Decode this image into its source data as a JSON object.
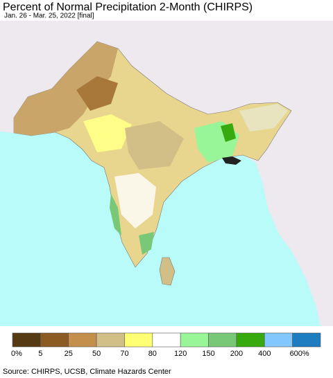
{
  "header": {
    "title": "Percent of Normal Precipitation 2-Month (CHIRPS)",
    "subtitle": "Jan. 26 - Mar. 25, 2022 [final]"
  },
  "legend": {
    "colors": [
      "#553a14",
      "#8c5a23",
      "#c48e4b",
      "#d2bf87",
      "#ffff73",
      "#ffffff",
      "#98f598",
      "#78c878",
      "#37aa0f",
      "#82c8ff",
      "#1e7dbe"
    ],
    "labels": [
      "0%",
      "5",
      "25",
      "50",
      "70",
      "80",
      "120",
      "150",
      "200",
      "400",
      "600%"
    ]
  },
  "footer": {
    "source": "Source: CHIRPS, UCSB, Climate Hazards Center"
  }
}
